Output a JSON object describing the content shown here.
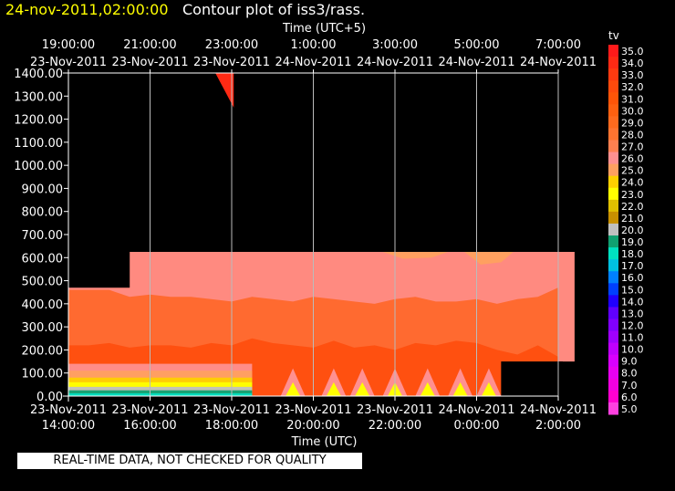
{
  "header": {
    "timestamp": "24-nov-2011,02:00:00",
    "title": "Contour plot of iss3/rass."
  },
  "notice": "REAL-TIME DATA, NOT CHECKED FOR QUALITY",
  "colors": {
    "timestamp": "#ffff00",
    "background": "#000000",
    "grid": "#bbbbbb"
  },
  "chart_data": {
    "type": "heatmap",
    "top_axis_label": "Time (UTC+5)",
    "bottom_axis_label": "Time (UTC)",
    "y_ticks": [
      "0.00",
      "100.00",
      "200.00",
      "300.00",
      "400.00",
      "500.00",
      "600.00",
      "700.00",
      "800.00",
      "900.00",
      "1000.00",
      "1100.00",
      "1200.00",
      "1300.00",
      "1400.00"
    ],
    "y_range": [
      0,
      1400
    ],
    "top_ticks": [
      {
        "time": "19:00:00",
        "date": "23-Nov-2011"
      },
      {
        "time": "21:00:00",
        "date": "23-Nov-2011"
      },
      {
        "time": "23:00:00",
        "date": "23-Nov-2011"
      },
      {
        "time": "1:00:00",
        "date": "24-Nov-2011"
      },
      {
        "time": "3:00:00",
        "date": "24-Nov-2011"
      },
      {
        "time": "5:00:00",
        "date": "24-Nov-2011"
      },
      {
        "time": "7:00:00",
        "date": "24-Nov-2011"
      }
    ],
    "bottom_ticks": [
      {
        "date": "23-Nov-2011",
        "time": "14:00:00"
      },
      {
        "date": "23-Nov-2011",
        "time": "16:00:00"
      },
      {
        "date": "23-Nov-2011",
        "time": "18:00:00"
      },
      {
        "date": "23-Nov-2011",
        "time": "20:00:00"
      },
      {
        "date": "23-Nov-2011",
        "time": "22:00:00"
      },
      {
        "date": "24-Nov-2011",
        "time": "0:00:00"
      },
      {
        "date": "24-Nov-2011",
        "time": "2:00:00"
      }
    ],
    "x_hours_utc": [
      0,
      2,
      4,
      6,
      8,
      10,
      12
    ],
    "grid": true,
    "colorbar": {
      "label": "tv",
      "levels": [
        "35.0",
        "34.0",
        "33.0",
        "32.0",
        "31.0",
        "30.0",
        "29.0",
        "28.0",
        "27.0",
        "26.0",
        "25.0",
        "24.0",
        "23.0",
        "22.0",
        "21.0",
        "20.0",
        "19.0",
        "18.0",
        "17.0",
        "16.0",
        "15.0",
        "14.0",
        "13.0",
        "12.0",
        "11.0",
        "10.0",
        "9.0",
        "8.0",
        "7.0",
        "6.0",
        "5.0"
      ],
      "colors": [
        "#ff1a1a",
        "#ff2a14",
        "#ff3a10",
        "#ff4a0c",
        "#ff5508",
        "#ff6010",
        "#ff6a1e",
        "#ff7430",
        "#ff8050",
        "#ff9090",
        "#ffa060",
        "#ffd000",
        "#ffff00",
        "#e0c000",
        "#c89000",
        "#c0c0c0",
        "#10a070",
        "#00e0c0",
        "#00c0e0",
        "#0080ff",
        "#0040ff",
        "#2000ff",
        "#6000ff",
        "#8000ff",
        "#a000ff",
        "#c000ff",
        "#d800ff",
        "#e800f0",
        "#f000e0",
        "#ff00d0",
        "#ff40e0"
      ]
    },
    "data_rows_time_hours": [
      0.0,
      0.5,
      1.0,
      1.5,
      2.0,
      2.5,
      3.0,
      3.5,
      4.0,
      4.5,
      5.0,
      5.5,
      6.0,
      6.5,
      7.0,
      7.5,
      8.0,
      8.5,
      9.0,
      9.5,
      10.0,
      10.5,
      11.0,
      11.5,
      12.0
    ],
    "band_tops_m": {
      "tv_29_30": [
        460,
        460,
        460,
        430,
        440,
        430,
        430,
        420,
        410,
        430,
        420,
        410,
        430,
        420,
        410,
        400,
        420,
        430,
        410,
        410,
        420,
        400,
        420,
        430,
        470
      ],
      "tv_30_31": [
        220,
        220,
        230,
        210,
        220,
        220,
        210,
        230,
        220,
        250,
        230,
        220,
        210,
        240,
        210,
        220,
        200,
        230,
        220,
        240,
        230,
        200,
        180,
        220,
        170
      ]
    },
    "data_top_m": 625
  }
}
